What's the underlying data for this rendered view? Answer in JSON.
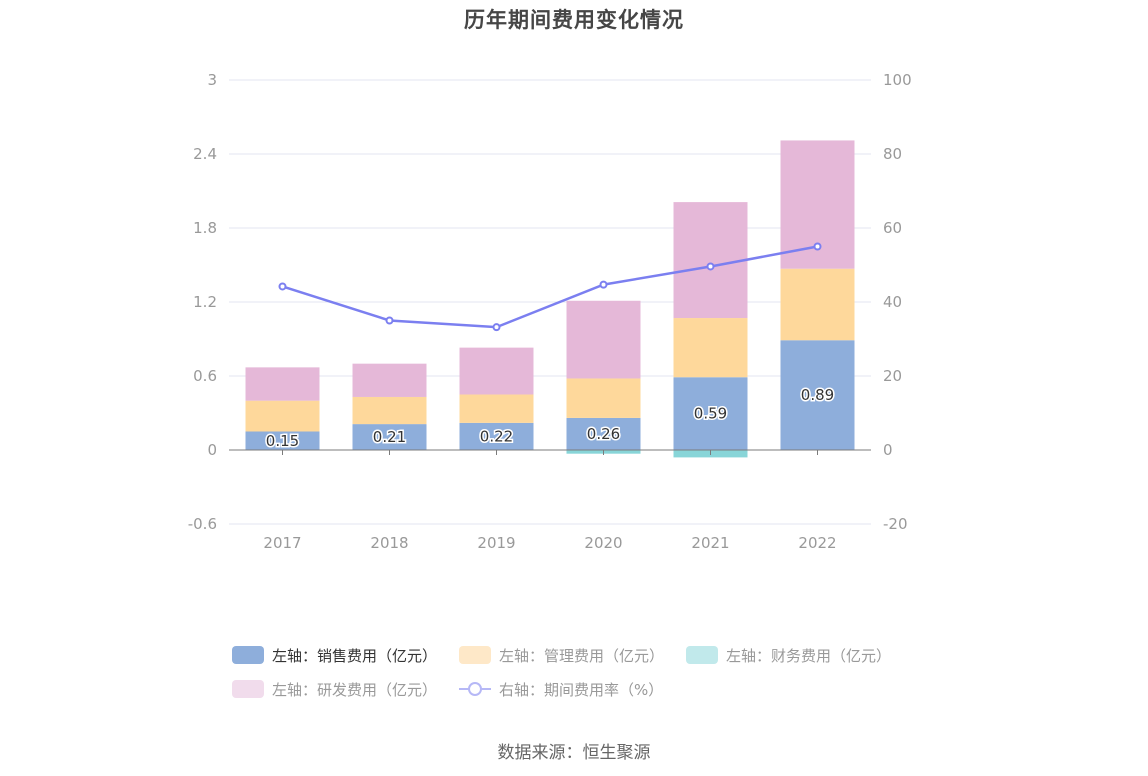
{
  "title": "历年期间费用变化情况",
  "source": "数据来源：恒生聚源",
  "colors": {
    "sales": "#8eaedb",
    "mgmt": "#fed89b",
    "finance": "#88d5d8",
    "rd": "#e5b8d8",
    "line": "#7b7ff0",
    "grid": "#e3e6f2",
    "axis": "#7b7b7b",
    "tick_text": "#999999"
  },
  "legend": [
    {
      "label": "左轴：销售费用（亿元）",
      "color": "#8eaedb",
      "type": "box",
      "active": true
    },
    {
      "label": "左轴：管理费用（亿元）",
      "color": "#fee8c8",
      "type": "box",
      "active": false
    },
    {
      "label": "左轴：财务费用（亿元）",
      "color": "#c1e9eb",
      "type": "box",
      "active": false
    },
    {
      "label": "左轴：研发费用（亿元）",
      "color": "#f1dcec",
      "type": "box",
      "active": false
    },
    {
      "label": "右轴：期间费用率（%）",
      "color": "#b6b8f6",
      "type": "line",
      "active": false
    }
  ],
  "chart_data": {
    "type": "bar",
    "stacked": true,
    "title": "历年期间费用变化情况",
    "categories": [
      "2017",
      "2018",
      "2019",
      "2020",
      "2021",
      "2022"
    ],
    "left_axis": {
      "min": -0.6,
      "max": 3,
      "ticks": [
        "-0.6",
        "0",
        "0.6",
        "1.2",
        "1.8",
        "2.4",
        "3"
      ],
      "tick_values": [
        -0.6,
        0,
        0.6,
        1.2,
        1.8,
        2.4,
        3
      ]
    },
    "right_axis": {
      "min": -20,
      "max": 100,
      "ticks": [
        "-20",
        "0",
        "20",
        "40",
        "60",
        "80",
        "100"
      ],
      "tick_values": [
        -20,
        0,
        20,
        40,
        60,
        80,
        100
      ]
    },
    "grid": true,
    "legend_position": "bottom",
    "series": [
      {
        "name": "左轴：销售费用（亿元）",
        "key": "sales",
        "axis": "left",
        "type": "bar",
        "values": [
          0.15,
          0.21,
          0.22,
          0.26,
          0.59,
          0.89
        ],
        "labels": [
          "0.15",
          "0.21",
          "0.22",
          "0.26",
          "0.59",
          "0.89"
        ]
      },
      {
        "name": "左轴：管理费用（亿元）",
        "key": "mgmt",
        "axis": "left",
        "type": "bar",
        "values": [
          0.25,
          0.22,
          0.23,
          0.32,
          0.48,
          0.58
        ]
      },
      {
        "name": "左轴：财务费用（亿元）",
        "key": "finance",
        "axis": "left",
        "type": "bar",
        "values": [
          0.0,
          0.0,
          0.0,
          -0.03,
          -0.06,
          0.0
        ]
      },
      {
        "name": "左轴：研发费用（亿元）",
        "key": "rd",
        "axis": "left",
        "type": "bar",
        "values": [
          0.27,
          0.27,
          0.38,
          0.63,
          0.94,
          1.04
        ]
      },
      {
        "name": "右轴：期间费用率（%）",
        "key": "rate",
        "axis": "right",
        "type": "line",
        "values": [
          44.2,
          35.0,
          33.2,
          44.7,
          49.6,
          55.0
        ]
      }
    ]
  }
}
